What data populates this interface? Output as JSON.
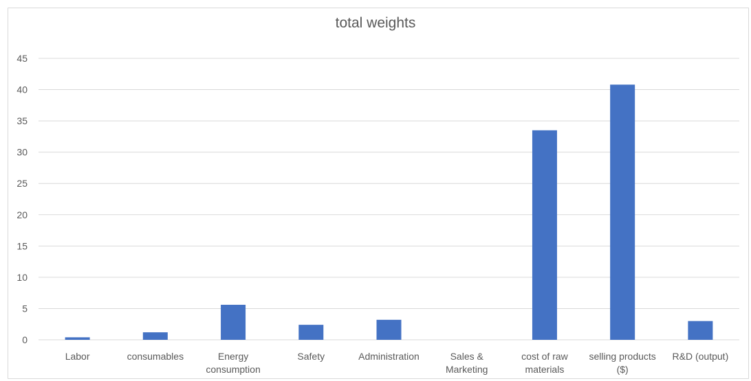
{
  "chart_data": {
    "type": "bar",
    "title": "total weights",
    "categories": [
      "Labor",
      "consumables",
      "Energy consumption",
      "Safety",
      "Administration",
      "Sales & Marketing",
      "cost of raw materials",
      "selling products ($)",
      "R&D (output)"
    ],
    "category_label_lines": [
      [
        "Labor"
      ],
      [
        "consumables"
      ],
      [
        "Energy",
        "consumption"
      ],
      [
        "Safety"
      ],
      [
        "Administration"
      ],
      [
        "Sales &",
        "Marketing"
      ],
      [
        "cost of raw",
        "materials"
      ],
      [
        "selling products",
        "($)"
      ],
      [
        "R&D (output)"
      ]
    ],
    "values": [
      0.4,
      1.2,
      5.6,
      2.4,
      3.2,
      0,
      33.5,
      40.8,
      3.0
    ],
    "ylim": [
      0,
      45
    ],
    "yticks": [
      0,
      5,
      10,
      15,
      20,
      25,
      30,
      35,
      40,
      45
    ],
    "grid": true,
    "colors": {
      "bar": "#4472c4"
    }
  }
}
